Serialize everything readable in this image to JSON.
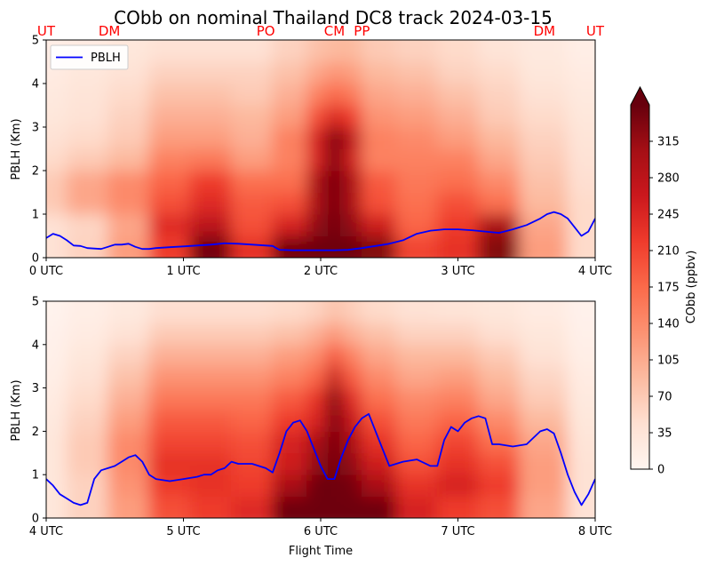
{
  "title": "CObb on nominal Thailand DC8 track 2024-03-15",
  "colors": {
    "pblh_line": "#0000ff",
    "station_label": "#ff0000",
    "colormap_stops": [
      "#fff5f0",
      "#fee0d2",
      "#fcbba1",
      "#fc9272",
      "#fb6a4a",
      "#ef3b2c",
      "#cb181d",
      "#a50f15",
      "#67000d"
    ]
  },
  "chart_data": [
    {
      "type": "heatmap",
      "panel": "top",
      "ylabel": "PBLH (Km)",
      "xlabel": "",
      "xlim": [
        0,
        4
      ],
      "ylim": [
        0,
        5
      ],
      "xticks": [
        0,
        1,
        2,
        3,
        4
      ],
      "xtick_labels": [
        "0 UTC",
        "1 UTC",
        "2 UTC",
        "3 UTC",
        "4 UTC"
      ],
      "yticks": [
        0,
        1,
        2,
        3,
        4,
        5
      ],
      "ytick_labels": [
        "0",
        "1",
        "2",
        "3",
        "4",
        "5"
      ],
      "legend": {
        "placement": "top-left",
        "entries": [
          "PBLH"
        ]
      },
      "station_labels": [
        {
          "x": 0.0,
          "label": "UT"
        },
        {
          "x": 0.46,
          "label": "DM"
        },
        {
          "x": 1.6,
          "label": "PO"
        },
        {
          "x": 2.1,
          "label": "CM"
        },
        {
          "x": 2.3,
          "label": "PP"
        },
        {
          "x": 3.63,
          "label": "DM"
        },
        {
          "x": 4.0,
          "label": "UT"
        }
      ],
      "pblh": {
        "name": "PBLH",
        "x": [
          0.0,
          0.05,
          0.1,
          0.15,
          0.2,
          0.25,
          0.3,
          0.4,
          0.45,
          0.5,
          0.55,
          0.6,
          0.65,
          0.7,
          0.75,
          0.8,
          0.85,
          0.9,
          1.0,
          1.1,
          1.2,
          1.3,
          1.4,
          1.5,
          1.6,
          1.65,
          1.7,
          1.8,
          1.9,
          2.0,
          2.1,
          2.2,
          2.3,
          2.4,
          2.5,
          2.6,
          2.7,
          2.8,
          2.9,
          3.0,
          3.1,
          3.2,
          3.3,
          3.4,
          3.5,
          3.6,
          3.65,
          3.7,
          3.75,
          3.8,
          3.85,
          3.9,
          3.95,
          4.0
        ],
        "values": [
          0.45,
          0.55,
          0.5,
          0.4,
          0.28,
          0.27,
          0.22,
          0.2,
          0.25,
          0.3,
          0.3,
          0.32,
          0.25,
          0.2,
          0.2,
          0.22,
          0.23,
          0.24,
          0.26,
          0.28,
          0.3,
          0.33,
          0.32,
          0.3,
          0.28,
          0.27,
          0.18,
          0.17,
          0.17,
          0.17,
          0.17,
          0.18,
          0.22,
          0.27,
          0.32,
          0.4,
          0.55,
          0.62,
          0.65,
          0.65,
          0.63,
          0.6,
          0.57,
          0.65,
          0.75,
          0.9,
          1.0,
          1.05,
          1.0,
          0.9,
          0.7,
          0.5,
          0.6,
          0.9
        ]
      },
      "field": {
        "x": [
          0.0,
          0.3,
          0.6,
          0.9,
          1.2,
          1.5,
          1.8,
          2.0,
          2.1,
          2.2,
          2.4,
          2.7,
          3.0,
          3.3,
          3.6,
          4.0
        ],
        "y": [
          0.25,
          0.75,
          1.25,
          1.75,
          2.25,
          2.75,
          3.25,
          3.75,
          4.25,
          4.75
        ],
        "values": [
          [
            40,
            60,
            120,
            220,
            340,
            230,
            340,
            345,
            345,
            345,
            330,
            210,
            230,
            330,
            120,
            50
          ],
          [
            40,
            55,
            110,
            240,
            280,
            200,
            250,
            320,
            345,
            320,
            260,
            180,
            220,
            300,
            110,
            50
          ],
          [
            70,
            110,
            140,
            200,
            240,
            190,
            200,
            300,
            345,
            300,
            200,
            170,
            200,
            170,
            90,
            50
          ],
          [
            70,
            110,
            140,
            180,
            220,
            170,
            170,
            300,
            345,
            300,
            190,
            160,
            170,
            140,
            80,
            45
          ],
          [
            50,
            70,
            90,
            150,
            160,
            120,
            150,
            250,
            345,
            260,
            150,
            150,
            150,
            110,
            70,
            40
          ],
          [
            40,
            50,
            70,
            120,
            120,
            100,
            150,
            250,
            345,
            280,
            150,
            140,
            120,
            90,
            60,
            35
          ],
          [
            30,
            40,
            60,
            100,
            100,
            90,
            120,
            200,
            250,
            220,
            130,
            120,
            100,
            70,
            50,
            30
          ],
          [
            25,
            35,
            50,
            80,
            80,
            70,
            100,
            150,
            180,
            160,
            110,
            100,
            80,
            60,
            40,
            25
          ],
          [
            20,
            30,
            40,
            60,
            60,
            60,
            80,
            110,
            130,
            120,
            90,
            80,
            60,
            50,
            30,
            20
          ],
          [
            15,
            20,
            30,
            40,
            40,
            40,
            60,
            80,
            90,
            90,
            70,
            60,
            50,
            35,
            25,
            15
          ]
        ]
      }
    },
    {
      "type": "heatmap",
      "panel": "bottom",
      "ylabel": "PBLH (Km)",
      "xlabel": "Flight Time",
      "xlim": [
        4,
        8
      ],
      "ylim": [
        0,
        5
      ],
      "xticks": [
        4,
        5,
        6,
        7,
        8
      ],
      "xtick_labels": [
        "4 UTC",
        "5 UTC",
        "6 UTC",
        "7 UTC",
        "8 UTC"
      ],
      "yticks": [
        0,
        1,
        2,
        3,
        4,
        5
      ],
      "ytick_labels": [
        "0",
        "1",
        "2",
        "3",
        "4",
        "5"
      ],
      "pblh": {
        "name": "PBLH",
        "x": [
          4.0,
          4.05,
          4.1,
          4.15,
          4.2,
          4.25,
          4.3,
          4.35,
          4.4,
          4.45,
          4.5,
          4.55,
          4.6,
          4.65,
          4.7,
          4.75,
          4.8,
          4.9,
          5.0,
          5.1,
          5.15,
          5.2,
          5.25,
          5.3,
          5.35,
          5.4,
          5.5,
          5.6,
          5.65,
          5.7,
          5.75,
          5.8,
          5.85,
          5.9,
          5.95,
          6.0,
          6.05,
          6.1,
          6.15,
          6.2,
          6.25,
          6.3,
          6.35,
          6.4,
          6.45,
          6.5,
          6.6,
          6.7,
          6.8,
          6.85,
          6.9,
          6.95,
          7.0,
          7.05,
          7.1,
          7.15,
          7.2,
          7.25,
          7.3,
          7.4,
          7.5,
          7.6,
          7.65,
          7.7,
          7.75,
          7.8,
          7.85,
          7.9,
          7.95,
          8.0
        ],
        "values": [
          0.9,
          0.75,
          0.55,
          0.45,
          0.35,
          0.3,
          0.35,
          0.9,
          1.1,
          1.15,
          1.2,
          1.3,
          1.4,
          1.45,
          1.3,
          1.0,
          0.9,
          0.85,
          0.9,
          0.95,
          1.0,
          1.0,
          1.1,
          1.15,
          1.3,
          1.25,
          1.25,
          1.15,
          1.05,
          1.5,
          2.0,
          2.2,
          2.25,
          2.0,
          1.6,
          1.2,
          0.9,
          0.9,
          1.4,
          1.8,
          2.1,
          2.3,
          2.4,
          2.0,
          1.6,
          1.2,
          1.3,
          1.35,
          1.2,
          1.2,
          1.8,
          2.1,
          2.0,
          2.2,
          2.3,
          2.35,
          2.3,
          1.7,
          1.7,
          1.65,
          1.7,
          2.0,
          2.05,
          1.95,
          1.5,
          1.0,
          0.6,
          0.3,
          0.55,
          0.9
        ]
      },
      "field": {
        "x": [
          4.0,
          4.3,
          4.6,
          4.9,
          5.2,
          5.5,
          5.8,
          6.0,
          6.1,
          6.2,
          6.4,
          6.7,
          7.0,
          7.3,
          7.6,
          8.0
        ],
        "y": [
          0.25,
          0.75,
          1.25,
          1.75,
          2.25,
          2.75,
          3.25,
          3.75,
          4.25,
          4.75
        ],
        "values": [
          [
            30,
            60,
            120,
            200,
            220,
            240,
            345,
            345,
            345,
            345,
            345,
            250,
            220,
            200,
            110,
            40
          ],
          [
            30,
            60,
            130,
            220,
            230,
            220,
            300,
            345,
            345,
            340,
            300,
            230,
            250,
            220,
            120,
            40
          ],
          [
            30,
            70,
            140,
            230,
            230,
            210,
            260,
            320,
            345,
            320,
            260,
            200,
            230,
            200,
            120,
            40
          ],
          [
            30,
            70,
            140,
            210,
            210,
            200,
            250,
            300,
            345,
            300,
            230,
            180,
            210,
            170,
            110,
            35
          ],
          [
            25,
            60,
            120,
            190,
            190,
            180,
            220,
            250,
            345,
            270,
            200,
            160,
            180,
            140,
            90,
            30
          ],
          [
            20,
            50,
            100,
            160,
            160,
            160,
            190,
            230,
            345,
            240,
            170,
            140,
            150,
            110,
            70,
            25
          ],
          [
            15,
            40,
            80,
            130,
            130,
            130,
            150,
            180,
            280,
            190,
            140,
            110,
            120,
            90,
            55,
            20
          ],
          [
            10,
            30,
            60,
            100,
            100,
            100,
            120,
            140,
            200,
            150,
            110,
            90,
            90,
            70,
            40,
            15
          ],
          [
            8,
            20,
            40,
            70,
            70,
            70,
            80,
            100,
            130,
            100,
            80,
            60,
            60,
            45,
            30,
            10
          ],
          [
            5,
            15,
            25,
            45,
            45,
            45,
            50,
            60,
            80,
            65,
            50,
            40,
            35,
            30,
            20,
            8
          ]
        ]
      }
    }
  ],
  "colorbar": {
    "label": "CObb (ppbv)",
    "min": 0,
    "max": 350,
    "extend": "max",
    "ticks": [
      0,
      35,
      70,
      105,
      140,
      175,
      210,
      245,
      280,
      315
    ],
    "tick_labels": [
      "0",
      "35",
      "70",
      "105",
      "140",
      "175",
      "210",
      "245",
      "280",
      "315"
    ]
  }
}
